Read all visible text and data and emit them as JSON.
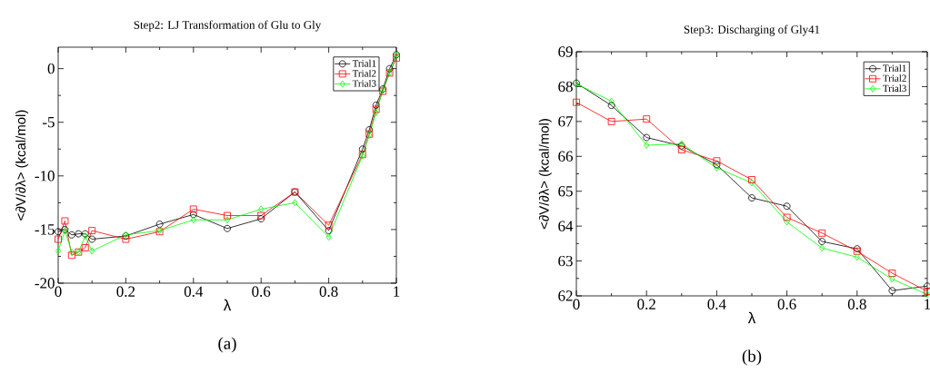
{
  "chart_data": [
    {
      "type": "line",
      "title": "Step2: LJ Transformation of Glu to Gly",
      "xlabel": "λ",
      "ylabel": "<∂V/∂λ> (kcal/mol)",
      "annotations": [
        "(a)"
      ],
      "x": [
        0,
        0.02,
        0.04,
        0.06,
        0.08,
        0.1,
        0.2,
        0.3,
        0.4,
        0.5,
        0.6,
        0.7,
        0.8,
        0.9,
        0.92,
        0.94,
        0.96,
        0.98,
        1
      ],
      "series": [
        {
          "name": "Trial1",
          "color": "#000000",
          "marker": "circle",
          "values": [
            -15.2,
            -15.0,
            -15.5,
            -15.4,
            -15.4,
            -15.9,
            -15.6,
            -14.5,
            -13.6,
            -14.9,
            -14.0,
            -11.5,
            -15.1,
            -7.5,
            -5.7,
            -3.4,
            -1.9,
            0,
            1.3
          ]
        },
        {
          "name": "Trial2",
          "color": "#ff0000",
          "marker": "square",
          "values": [
            -15.9,
            -14.2,
            -17.4,
            -17.1,
            -16.7,
            -15.1,
            -15.9,
            -15.2,
            -13.1,
            -13.7,
            -13.7,
            -11.5,
            -14.6,
            -8.0,
            -6.1,
            -3.8,
            -2.1,
            -0.4,
            1.0
          ]
        },
        {
          "name": "Trial3",
          "color": "#00ff00",
          "marker": "diamond",
          "values": [
            -17.0,
            -15.1,
            -17.1,
            -17.1,
            -15.6,
            -17.0,
            -15.5,
            -15.1,
            -14.1,
            -14.1,
            -13.1,
            -12.5,
            -15.7,
            -8.1,
            -6.2,
            -4.1,
            -2.0,
            -0.4,
            1.3
          ]
        }
      ],
      "xlim": [
        0,
        1
      ],
      "xticks": [
        0,
        0.2,
        0.4,
        0.6,
        0.8,
        1
      ],
      "ylim": [
        -20,
        2
      ],
      "yticks": [
        -20,
        -15,
        -10,
        -5,
        0
      ],
      "legend": "top right",
      "line_style": "solid",
      "grid": false
    },
    {
      "type": "line",
      "title": "Step3: Discharging of Gly41",
      "xlabel": "λ",
      "ylabel": "<∂V/∂λ> (kcal/mol)",
      "annotations": [
        "(b)"
      ],
      "x": [
        0,
        0.1,
        0.2,
        0.3,
        0.4,
        0.5,
        0.6,
        0.7,
        0.8,
        0.9,
        1
      ],
      "series": [
        {
          "name": "Trial1",
          "color": "#000000",
          "marker": "circle",
          "values": [
            68.1,
            67.46,
            66.54,
            66.3,
            65.76,
            64.81,
            64.57,
            63.56,
            63.35,
            62.15,
            62.28
          ]
        },
        {
          "name": "Trial2",
          "color": "#ff0000",
          "marker": "square",
          "values": [
            67.55,
            67.0,
            67.07,
            66.19,
            65.87,
            65.33,
            64.25,
            63.8,
            63.28,
            62.65,
            62.13
          ]
        },
        {
          "name": "Trial3",
          "color": "#00ff00",
          "marker": "diamond",
          "values": [
            68.08,
            67.58,
            66.32,
            66.36,
            65.67,
            65.24,
            64.12,
            63.37,
            63.11,
            62.48,
            62.04
          ]
        }
      ],
      "xlim": [
        0,
        1
      ],
      "xticks": [
        0,
        0.2,
        0.4,
        0.6,
        0.8,
        1
      ],
      "ylim": [
        62,
        69
      ],
      "yticks": [
        62,
        63,
        64,
        65,
        66,
        67,
        68,
        69
      ],
      "legend": "top right",
      "line_style": "solid",
      "grid": false
    }
  ]
}
